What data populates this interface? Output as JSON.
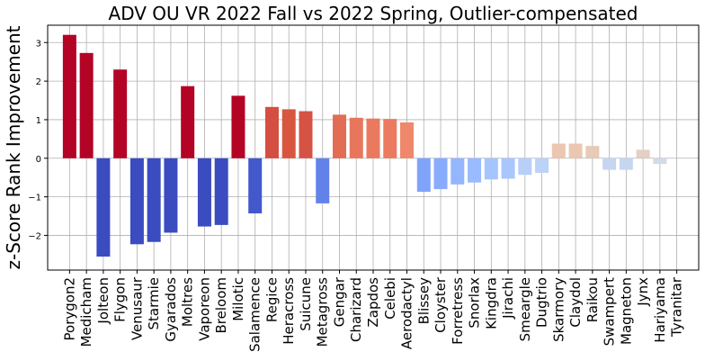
{
  "chart_data": {
    "type": "bar",
    "title": "ADV OU VR 2022 Fall vs 2022 Spring, Outlier-compensated",
    "xlabel": "",
    "ylabel": "z-Score Rank Improvement",
    "ylim": [
      -2.9,
      3.45
    ],
    "yticks": [
      -2,
      -1,
      0,
      1,
      2,
      3
    ],
    "ytick_labels": [
      "−2",
      "−1",
      "0",
      "1",
      "2",
      "3"
    ],
    "grid": true,
    "colormap": "coolwarm",
    "categories": [
      "Porygon2",
      "Medicham",
      "Jolteon",
      "Flygon",
      "Venusaur",
      "Starmie",
      "Gyarados",
      "Moltres",
      "Vaporeon",
      "Breloom",
      "Milotic",
      "Salamence",
      "Regice",
      "Heracross",
      "Suicune",
      "Metagross",
      "Gengar",
      "Charizard",
      "Zapdos",
      "Celebi",
      "Aerodactyl",
      "Blissey",
      "Cloyster",
      "Forretress",
      "Snorlax",
      "Kingdra",
      "Jirachi",
      "Smeargle",
      "Dugtrio",
      "Skarmory",
      "Claydol",
      "Raikou",
      "Swampert",
      "Magneton",
      "Jynx",
      "Hariyama",
      "Tyranitar"
    ],
    "values": [
      3.2,
      2.73,
      -2.55,
      2.3,
      -2.23,
      -2.17,
      -1.93,
      1.87,
      -1.77,
      -1.73,
      1.62,
      -1.43,
      1.33,
      1.27,
      1.22,
      -1.17,
      1.13,
      1.05,
      1.03,
      1.02,
      0.93,
      -0.87,
      -0.8,
      -0.68,
      -0.63,
      -0.55,
      -0.53,
      -0.43,
      -0.38,
      0.38,
      0.38,
      0.32,
      -0.3,
      -0.3,
      0.22,
      -0.15,
      0.0
    ],
    "colors": [
      "#b40426",
      "#b40426",
      "#3b4cc0",
      "#b40426",
      "#3b4cc0",
      "#3b4cc0",
      "#3b4cc0",
      "#b40426",
      "#3b4cc0",
      "#3b4cc0",
      "#b40426",
      "#4358cb",
      "#d44e41",
      "#d8563f",
      "#d65244",
      "#6282ea",
      "#e36c55",
      "#e8765c",
      "#e97a5f",
      "#ea7b60",
      "#ef886b",
      "#80a3fa",
      "#88abfd",
      "#94b6ff",
      "#9abbff",
      "#a6c4fe",
      "#a9c6fd",
      "#b7cff9",
      "#bcd2f7",
      "#ebc7b1",
      "#ebc7b1",
      "#e8cab8",
      "#c6d6f1",
      "#c6d6f1",
      "#e4d0c3",
      "#d2dbe8",
      "#dddcdc"
    ]
  }
}
